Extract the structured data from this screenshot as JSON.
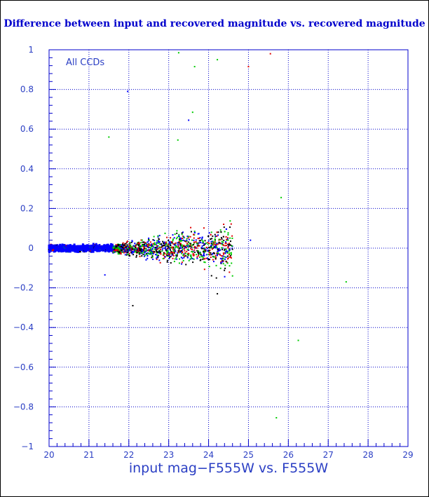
{
  "chart_data": {
    "type": "scatter",
    "title": "Difference between input and recovered magnitude vs. recovered magnitude",
    "xlabel": "input mag−F555W vs. F555W",
    "ylabel": "",
    "annotation": "All CCDs",
    "xlim": [
      20,
      29
    ],
    "ylim": [
      -1,
      1
    ],
    "x_ticks": [
      "20",
      "21",
      "22",
      "23",
      "24",
      "25",
      "26",
      "27",
      "28",
      "29"
    ],
    "y_ticks": [
      "1",
      "0.8",
      "0.6",
      "0.4",
      "0.2",
      "0",
      "−0.2",
      "−0.4",
      "−0.6",
      "−0.8",
      "−1"
    ],
    "grid": true,
    "colors": {
      "axis": "#0000cc",
      "text": "#2b3fc4",
      "series_blue": "#0000ff",
      "series_green": "#00cc00",
      "series_red": "#dd0000",
      "series_black": "#000000"
    },
    "outliers": [
      {
        "x": 23.25,
        "y": 0.985,
        "color": "#00cc00"
      },
      {
        "x": 25.55,
        "y": 0.98,
        "color": "#dd0000"
      },
      {
        "x": 24.22,
        "y": 0.95,
        "color": "#00cc00"
      },
      {
        "x": 23.65,
        "y": 0.915,
        "color": "#00cc00"
      },
      {
        "x": 25.0,
        "y": 0.915,
        "color": "#dd0000"
      },
      {
        "x": 21.97,
        "y": 0.79,
        "color": "#0000ff"
      },
      {
        "x": 23.6,
        "y": 0.685,
        "color": "#00cc00"
      },
      {
        "x": 23.5,
        "y": 0.645,
        "color": "#0000ff"
      },
      {
        "x": 21.5,
        "y": 0.56,
        "color": "#00cc00"
      },
      {
        "x": 23.23,
        "y": 0.545,
        "color": "#00cc00"
      },
      {
        "x": 25.82,
        "y": 0.255,
        "color": "#00cc00"
      },
      {
        "x": 25.05,
        "y": 0.04,
        "color": "#0000ff"
      },
      {
        "x": 24.22,
        "y": -0.23,
        "color": "#000000"
      },
      {
        "x": 22.1,
        "y": -0.29,
        "color": "#000000"
      },
      {
        "x": 27.45,
        "y": -0.17,
        "color": "#00cc00"
      },
      {
        "x": 26.25,
        "y": -0.465,
        "color": "#00cc00"
      },
      {
        "x": 25.7,
        "y": -0.855,
        "color": "#00cc00"
      },
      {
        "x": 24.6,
        "y": -0.14,
        "color": "#00cc00"
      },
      {
        "x": 21.4,
        "y": -0.135,
        "color": "#0000ff"
      }
    ]
  }
}
